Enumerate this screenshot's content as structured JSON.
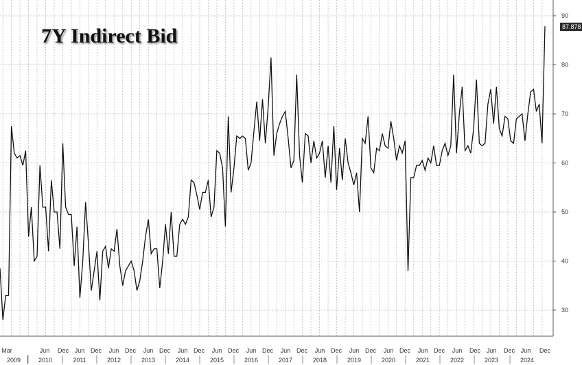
{
  "chart_data": {
    "type": "line",
    "title": "7Y Indirect Bid",
    "xlabel": "",
    "ylabel": "",
    "ylim": [
      22,
      92
    ],
    "yticks": [
      30,
      40,
      50,
      60,
      70,
      80,
      90
    ],
    "grid": true,
    "last_value_label": "87.878",
    "x_month_ticks": [
      "Mar",
      "Jun",
      "Dec",
      "Jun",
      "Dec",
      "Jun",
      "Dec",
      "Jun",
      "Dec",
      "Jun",
      "Dec",
      "Jun",
      "Dec",
      "Jun",
      "Dec",
      "Jun",
      "Dec",
      "Jun",
      "Dec",
      "Jun",
      "Dec",
      "Jun",
      "Dec",
      "Jun",
      "Dec",
      "Jun",
      "Dec",
      "Jun",
      "Dec",
      "Jun",
      "Dec",
      "Jun",
      "Dec"
    ],
    "x_year_ticks": [
      "2009",
      "2010",
      "2011",
      "2012",
      "2013",
      "2014",
      "2015",
      "2016",
      "2017",
      "2018",
      "2019",
      "2020",
      "2021",
      "2022",
      "2023",
      "2024"
    ],
    "series": [
      {
        "values": [
          38.5,
          28,
          33,
          33,
          67.5,
          62,
          61,
          61.5,
          59.5,
          62.5,
          45,
          51,
          40,
          41,
          59.5,
          51,
          51,
          42,
          56.5,
          50,
          50,
          42.5,
          64,
          51,
          49.5,
          49.5,
          39,
          47,
          32.5,
          40,
          52,
          43.5,
          34,
          38,
          42,
          32,
          42,
          43,
          38.5,
          42.5,
          42,
          46.5,
          39,
          35,
          38,
          39,
          40,
          38,
          34,
          36,
          40,
          45,
          48.5,
          41.5,
          42.5,
          42.5,
          34.5,
          40,
          47.5,
          41.5,
          50,
          41,
          41,
          47.5,
          48.5,
          47.5,
          49,
          56.5,
          56,
          53.5,
          50.5,
          54,
          54,
          56.5,
          49,
          51,
          62.5,
          62,
          59,
          47,
          69.5,
          54,
          59,
          65.5,
          65,
          65.5,
          65,
          58.5,
          60,
          66.5,
          72.5,
          64.5,
          73,
          64,
          71.5,
          81.5,
          61.5,
          66,
          68,
          69.5,
          70.5,
          65,
          59,
          60.5,
          78,
          61.5,
          56,
          66,
          65.5,
          60,
          64.5,
          61,
          62,
          64.5,
          57,
          63.5,
          56,
          67.5,
          54.5,
          63,
          56.5,
          65,
          60,
          58,
          55.5,
          58,
          50,
          65,
          64,
          69.5,
          59,
          58,
          63,
          62.5,
          66,
          63.5,
          63,
          68.5,
          65,
          60.5,
          63.5,
          62,
          64.5,
          38,
          57,
          57,
          59.5,
          59.5,
          60.5,
          58.5,
          61,
          60,
          63.5,
          59.5,
          59.5,
          62.5,
          64,
          61.5,
          63.5,
          78,
          62,
          70,
          75.5,
          62.5,
          63.5,
          62,
          67,
          77,
          64,
          63.5,
          64,
          72,
          75,
          68,
          75.5,
          67,
          65.5,
          69.5,
          69,
          64.5,
          64,
          69,
          69.5,
          70,
          64.5,
          70,
          74.5,
          75,
          70.5,
          72,
          64,
          87.878
        ]
      }
    ]
  }
}
